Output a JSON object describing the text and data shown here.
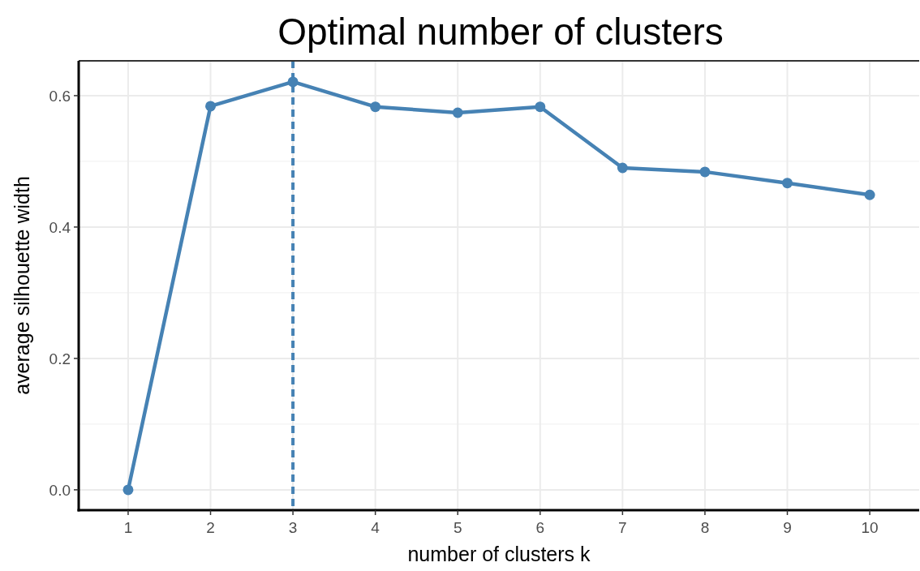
{
  "chart_data": {
    "type": "line",
    "title": "Optimal number of clusters",
    "xlabel": "number of clusters k",
    "ylabel": "average silhouette width",
    "categories": [
      "1",
      "2",
      "3",
      "4",
      "5",
      "6",
      "7",
      "8",
      "9",
      "10"
    ],
    "series": [
      {
        "color": "#4682b4",
        "values": [
          0,
          0.584,
          0.621,
          0.583,
          0.574,
          0.583,
          0.49,
          0.484,
          0.467,
          0.449
        ]
      }
    ],
    "ylim": [
      -0.031,
      0.653
    ],
    "yticks": [
      {
        "value": 0,
        "label": "0.0"
      },
      {
        "value": 0.1,
        "label": null
      },
      0.2,
      {
        "value": 0.3,
        "label": null
      },
      0.4,
      {
        "value": 0.5,
        "label": null
      },
      0.6
    ],
    "grid": true,
    "marker": "circle",
    "line_style": "solid",
    "ref_lines": [
      {
        "axis": "x",
        "value": "3",
        "color": "#4682b4",
        "line_style": "dashed"
      }
    ]
  }
}
